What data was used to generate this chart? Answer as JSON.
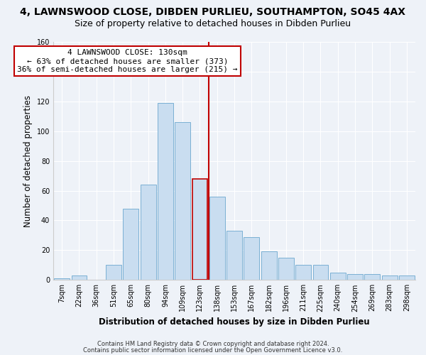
{
  "title": "4, LAWNSWOOD CLOSE, DIBDEN PURLIEU, SOUTHAMPTON, SO45 4AX",
  "subtitle": "Size of property relative to detached houses in Dibden Purlieu",
  "xlabel": "Distribution of detached houses by size in Dibden Purlieu",
  "ylabel": "Number of detached properties",
  "bar_labels": [
    "7sqm",
    "22sqm",
    "36sqm",
    "51sqm",
    "65sqm",
    "80sqm",
    "94sqm",
    "109sqm",
    "123sqm",
    "138sqm",
    "153sqm",
    "167sqm",
    "182sqm",
    "196sqm",
    "211sqm",
    "225sqm",
    "240sqm",
    "254sqm",
    "269sqm",
    "283sqm",
    "298sqm"
  ],
  "bar_values": [
    1,
    3,
    0,
    10,
    48,
    64,
    119,
    106,
    68,
    56,
    33,
    29,
    19,
    15,
    10,
    10,
    5,
    4,
    4,
    3,
    3
  ],
  "bar_color": "#c9ddf0",
  "bar_edge_color": "#7ab0d4",
  "highlight_bar_index": 8,
  "highlight_bar_edge_color": "#c00000",
  "vline_x": 8.5,
  "vline_color": "#c00000",
  "ylim": [
    0,
    160
  ],
  "yticks": [
    0,
    20,
    40,
    60,
    80,
    100,
    120,
    140,
    160
  ],
  "annotation_title": "4 LAWNSWOOD CLOSE: 130sqm",
  "annotation_line1": "← 63% of detached houses are smaller (373)",
  "annotation_line2": "36% of semi-detached houses are larger (215) →",
  "footnote1": "Contains HM Land Registry data © Crown copyright and database right 2024.",
  "footnote2": "Contains public sector information licensed under the Open Government Licence v3.0.",
  "background_color": "#eef2f8",
  "grid_color": "#ffffff",
  "title_fontsize": 10,
  "subtitle_fontsize": 9,
  "axis_label_fontsize": 8.5,
  "tick_fontsize": 7,
  "annotation_fontsize": 8,
  "footnote_fontsize": 6
}
